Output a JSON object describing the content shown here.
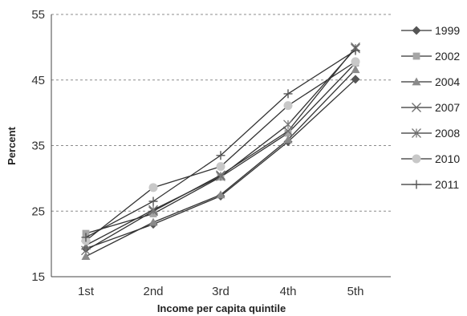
{
  "chart_data": {
    "type": "line",
    "categories": [
      "1st",
      "2nd",
      "3rd",
      "4th",
      "5th"
    ],
    "xlabel": "Income per capita quintile",
    "ylabel": "Percent",
    "ylim": [
      15,
      55
    ],
    "yticks": [
      15,
      25,
      35,
      45,
      55
    ],
    "grid": true,
    "legend_position": "right",
    "series": [
      {
        "name": "1999",
        "marker": "diamond",
        "color": "#555555",
        "values": [
          19.3,
          23.0,
          27.3,
          35.6,
          45.1
        ]
      },
      {
        "name": "2002",
        "marker": "square",
        "color": "#a6a6a6",
        "values": [
          21.6,
          24.6,
          30.2,
          36.9,
          47.6
        ]
      },
      {
        "name": "2004",
        "marker": "triangle",
        "color": "#8a8a8a",
        "values": [
          18.1,
          23.3,
          27.5,
          35.9,
          46.6
        ]
      },
      {
        "name": "2007",
        "marker": "x",
        "color": "#6e6e6e",
        "values": [
          19.0,
          25.0,
          30.5,
          37.2,
          50.0
        ]
      },
      {
        "name": "2008",
        "marker": "star",
        "color": "#777777",
        "values": [
          19.8,
          25.2,
          30.3,
          38.2,
          49.8
        ]
      },
      {
        "name": "2010",
        "marker": "circle",
        "color": "#c8c8c8",
        "values": [
          20.5,
          28.6,
          31.8,
          41.1,
          47.8
        ]
      },
      {
        "name": "2011",
        "marker": "plus",
        "color": "#555555",
        "values": [
          21.0,
          26.5,
          33.5,
          42.9,
          49.5
        ]
      }
    ]
  }
}
